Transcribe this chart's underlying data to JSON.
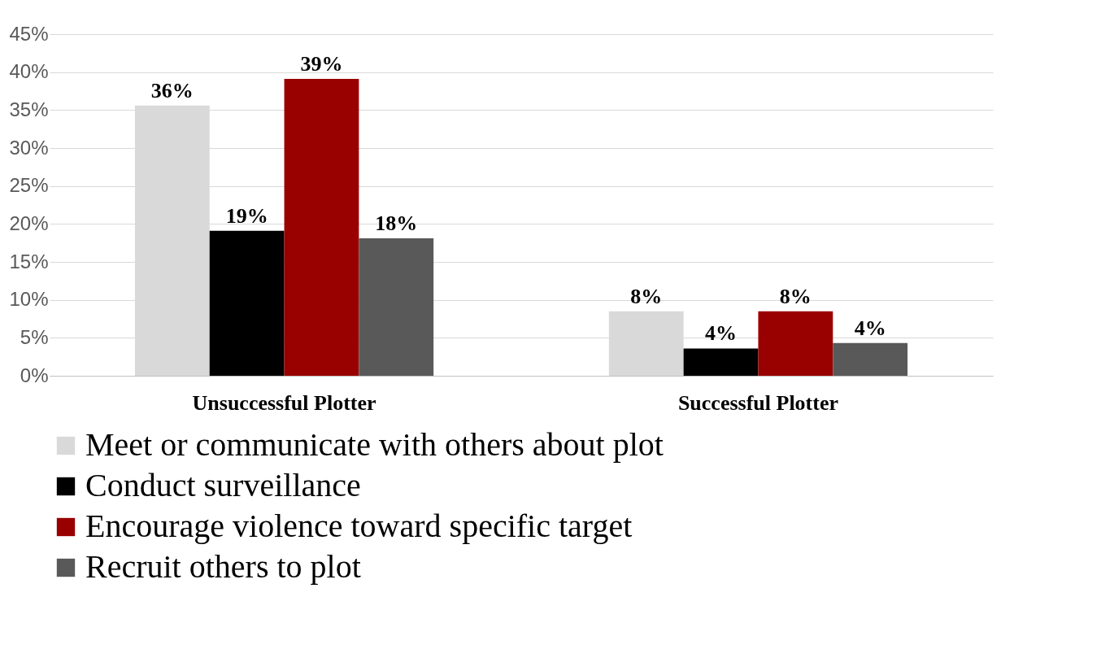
{
  "chart_data": {
    "type": "bar",
    "categories": [
      "Unsuccessful Plotter",
      "Successful Plotter"
    ],
    "series": [
      {
        "name": "Meet or communicate with others about plot",
        "color": "#d9d9d9",
        "values": [
          35.6,
          8.5
        ],
        "value_labels": [
          "36%",
          "8%"
        ]
      },
      {
        "name": "Conduct surveillance",
        "color": "#000000",
        "values": [
          19.1,
          3.6
        ],
        "value_labels": [
          "19%",
          "4%"
        ]
      },
      {
        "name": "Encourage violence toward specific target",
        "color": "#990000",
        "values": [
          39.1,
          8.5
        ],
        "value_labels": [
          "39%",
          "8%"
        ]
      },
      {
        "name": "Recruit others to plot",
        "color": "#595959",
        "values": [
          18.1,
          4.3
        ],
        "value_labels": [
          "18%",
          "4%"
        ]
      }
    ],
    "ylim": [
      0,
      45
    ],
    "yticks": [
      {
        "value": 0,
        "label": "0%"
      },
      {
        "value": 5,
        "label": "5%"
      },
      {
        "value": 10,
        "label": "10%"
      },
      {
        "value": 15,
        "label": "15%"
      },
      {
        "value": 20,
        "label": "20%"
      },
      {
        "value": 25,
        "label": "25%"
      },
      {
        "value": 30,
        "label": "30%"
      },
      {
        "value": 35,
        "label": "35%"
      },
      {
        "value": 40,
        "label": "40%"
      },
      {
        "value": 45,
        "label": "45%"
      }
    ],
    "grid": "y",
    "legend": "bottom"
  }
}
